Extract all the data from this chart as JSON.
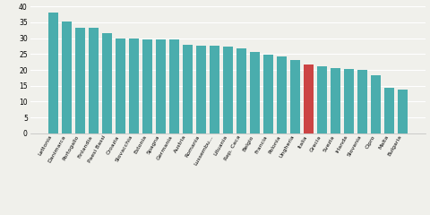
{
  "categories": [
    "Lettonia",
    "Danimarca",
    "Portogallo",
    "Finlandia",
    "Paesi Bassi",
    "Croazia",
    "Slovacchia",
    "Estonia",
    "Spagna",
    "Germania",
    "Austria",
    "Romania",
    "Lussembu...",
    "Lituania",
    "Rep. Ceca",
    "Belgio",
    "Francia",
    "Polonia",
    "Ungheria",
    "Italia",
    "Grecia",
    "Svezia",
    "Irlanda",
    "Slovenia",
    "Cipro",
    "Malta",
    "Bulgaria"
  ],
  "values": [
    38.0,
    35.2,
    33.2,
    33.2,
    31.5,
    30.0,
    29.8,
    29.7,
    29.5,
    29.5,
    28.0,
    27.7,
    27.5,
    27.4,
    26.8,
    25.6,
    24.8,
    24.3,
    23.1,
    21.8,
    21.1,
    20.7,
    20.2,
    19.9,
    18.4,
    14.3,
    13.8
  ],
  "bar_colors": [
    "#4AADAD",
    "#4AADAD",
    "#4AADAD",
    "#4AADAD",
    "#4AADAD",
    "#4AADAD",
    "#4AADAD",
    "#4AADAD",
    "#4AADAD",
    "#4AADAD",
    "#4AADAD",
    "#4AADAD",
    "#4AADAD",
    "#4AADAD",
    "#4AADAD",
    "#4AADAD",
    "#4AADAD",
    "#4AADAD",
    "#4AADAD",
    "#CC4444",
    "#4AADAD",
    "#4AADAD",
    "#4AADAD",
    "#4AADAD",
    "#4AADAD",
    "#4AADAD",
    "#4AADAD"
  ],
  "ylim": [
    0,
    40
  ],
  "yticks": [
    0,
    5,
    10,
    15,
    20,
    25,
    30,
    35,
    40
  ],
  "background_color": "#f0f0eb",
  "bar_width": 0.75,
  "ytick_fontsize": 5.5,
  "label_fontsize": 4.5,
  "grid_color": "#ffffff",
  "spine_color": "#bbbbbb"
}
